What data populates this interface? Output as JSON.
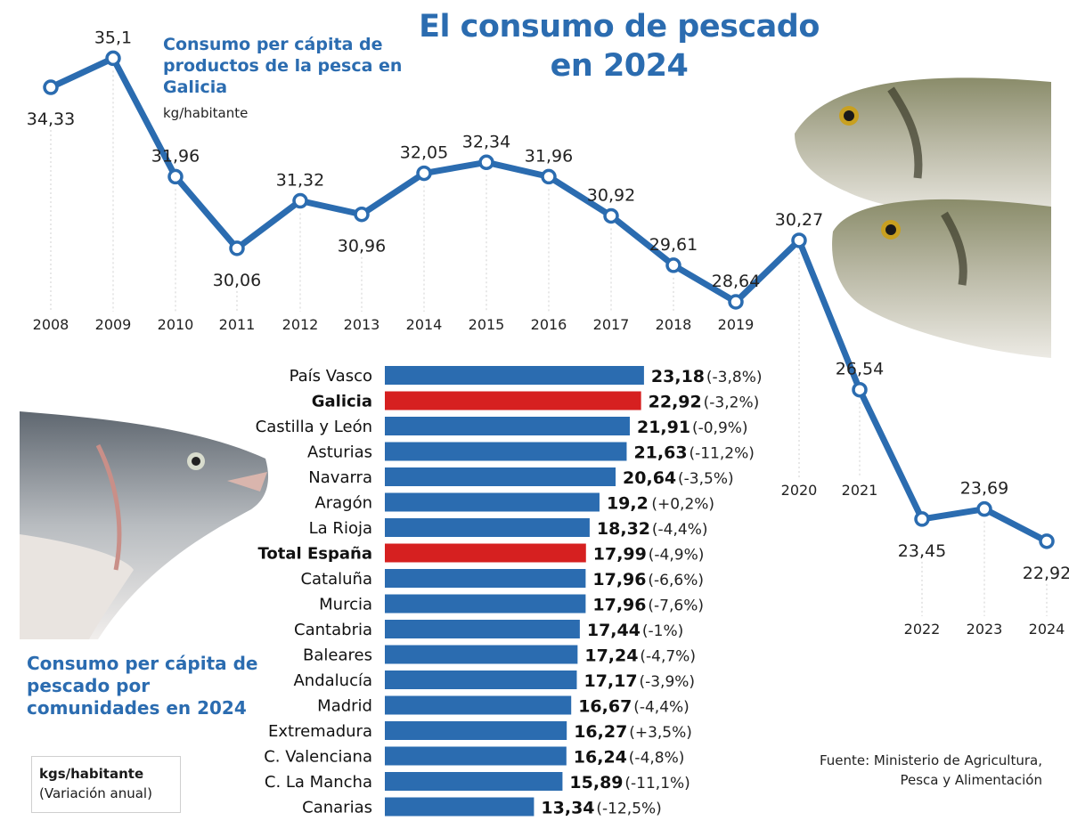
{
  "title": "El consumo de pescado en 2024",
  "line_chart": {
    "title": "Consumo per cápita de productos de la pesca en Galicia",
    "unit": "kg/habitante"
  },
  "bar_chart": {
    "title": "Consumo per cápita de pescado por comunidades en 2024",
    "legend_unit": "kgs/habitante",
    "legend_note": "(Variación anual)"
  },
  "source": "Fuente: Ministerio de Agricultura, Pesca y Alimentación",
  "colors": {
    "blue": "#2b6cb0",
    "red": "#d62020",
    "grid": "#d0d0d0"
  },
  "images": [
    {
      "name": "sea-bream-fish-image"
    },
    {
      "name": "salmon-head-image"
    }
  ],
  "chart_data": [
    {
      "type": "line",
      "title": "Consumo per cápita de productos de la pesca en Galicia",
      "ylabel": "kg/habitante",
      "x": [
        "2008",
        "2009",
        "2010",
        "2011",
        "2012",
        "2013",
        "2014",
        "2015",
        "2016",
        "2017",
        "2018",
        "2019",
        "2020",
        "2021",
        "2022",
        "2023",
        "2024"
      ],
      "y": [
        34.33,
        35.1,
        31.96,
        30.06,
        31.32,
        30.96,
        32.05,
        32.34,
        31.96,
        30.92,
        29.61,
        28.64,
        30.27,
        26.54,
        23.45,
        23.69,
        22.92
      ],
      "labels": [
        "34,33",
        "35,1",
        "31,96",
        "30,06",
        "31,32",
        "30,96",
        "32,05",
        "32,34",
        "31,96",
        "30,92",
        "29,61",
        "28,64",
        "30,27",
        "26,54",
        "23,45",
        "23,69",
        "22,92"
      ]
    },
    {
      "type": "bar",
      "orientation": "horizontal",
      "title": "Consumo per cápita de pescado por comunidades en 2024",
      "categories": [
        "País Vasco",
        "Galicia",
        "Castilla y León",
        "Asturias",
        "Navarra",
        "Aragón",
        "La Rioja",
        "Total España",
        "Cataluña",
        "Murcia",
        "Cantabria",
        "Baleares",
        "Andalucía",
        "Madrid",
        "Extremadura",
        "C. Valenciana",
        "C. La Mancha",
        "Canarias"
      ],
      "values": [
        23.18,
        22.92,
        21.91,
        21.63,
        20.64,
        19.2,
        18.32,
        17.99,
        17.96,
        17.96,
        17.44,
        17.24,
        17.17,
        16.67,
        16.27,
        16.24,
        15.89,
        13.34
      ],
      "value_labels": [
        "23,18",
        "22,92",
        "21,91",
        "21,63",
        "20,64",
        "19,2",
        "18,32",
        "17,99",
        "17,96",
        "17,96",
        "17,44",
        "17,24",
        "17,17",
        "16,67",
        "16,27",
        "16,24",
        "15,89",
        "13,34"
      ],
      "variation_labels": [
        "(-3,8%)",
        "(-3,2%)",
        "(-0,9%)",
        "(-11,2%)",
        "(-3,5%)",
        "(+0,2%)",
        "(-4,4%)",
        "(-4,9%)",
        "(-6,6%)",
        "(-7,6%)",
        "(-1%)",
        "(-4,7%)",
        "(-3,9%)",
        "(-4,4%)",
        "(+3,5%)",
        "(-4,8%)",
        "(-11,1%)",
        "(-12,5%)"
      ],
      "highlighted": [
        "Galicia",
        "Total España"
      ]
    }
  ]
}
